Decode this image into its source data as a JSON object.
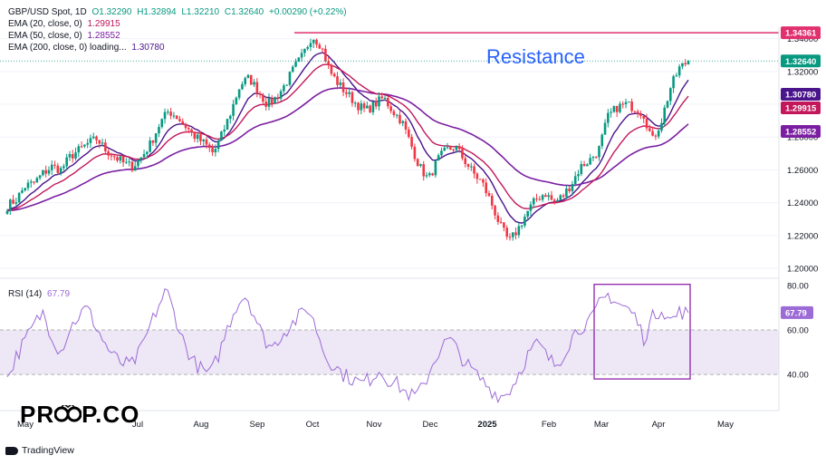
{
  "header": {
    "symbol_line": "GBP/USD Spot, 1D",
    "open": "O1.32290",
    "high": "H1.32894",
    "low": "L1.32210",
    "close": "C1.32640",
    "change": "+0.00290 (+0.22%)"
  },
  "indicators": [
    {
      "label": "EMA (20, close, 0)",
      "value": "1.29915",
      "color": "#c2185b"
    },
    {
      "label": "EMA (50, close, 0)",
      "value": "1.28552",
      "color": "#7b1fa2"
    },
    {
      "label": "EMA (200, close, 0) loading...",
      "value": "1.30780",
      "color": "#4a148c"
    }
  ],
  "rsi": {
    "label": "RSI (14)",
    "value": "67.79",
    "color": "#9c6bd6"
  },
  "branding": {
    "tradingview": "TradingView",
    "logo_left": "PR",
    "logo_right": "P.CO"
  },
  "colors": {
    "up": "#089981",
    "down": "#f23645",
    "resistance": "#e0306e",
    "rsi_band": "#ede7f6"
  },
  "chart_data": [
    {
      "type": "candlestick",
      "title": "GBP/USD Spot, 1D",
      "ylim": [
        1.195,
        1.347
      ],
      "y_ticks": [
        "1.34000",
        "1.32000",
        "1.30000",
        "1.28000",
        "1.26000",
        "1.24000",
        "1.22000",
        "1.20000"
      ],
      "x_ticks": [
        "May",
        "Jul",
        "Aug",
        "Sep",
        "Oct",
        "Nov",
        "Dec",
        "2025",
        "Feb",
        "Mar",
        "Apr",
        "May"
      ],
      "resistance": {
        "value": 1.34361,
        "label": "Resistance",
        "price_label": "1.34361"
      },
      "last_price": {
        "value": 1.3264,
        "label": "1.32640"
      },
      "price_tags": [
        {
          "label": "1.30780",
          "value": 1.3078,
          "color": "#4a148c"
        },
        {
          "label": "1.29915",
          "value": 1.29915,
          "color": "#c2185b"
        },
        {
          "label": "1.28552",
          "value": 1.28552,
          "color": "#7b1fa2"
        }
      ],
      "close_path": [
        1.238,
        1.242,
        1.25,
        1.252,
        1.258,
        1.262,
        1.26,
        1.268,
        1.272,
        1.276,
        1.279,
        1.272,
        1.268,
        1.264,
        1.262,
        1.268,
        1.276,
        1.288,
        1.296,
        1.292,
        1.286,
        1.28,
        1.276,
        1.27,
        1.282,
        1.296,
        1.312,
        1.316,
        1.308,
        1.3,
        1.304,
        1.312,
        1.322,
        1.33,
        1.342,
        1.336,
        1.32,
        1.312,
        1.306,
        1.3,
        1.296,
        1.3,
        1.304,
        1.296,
        1.29,
        1.276,
        1.262,
        1.254,
        1.266,
        1.272,
        1.274,
        1.266,
        1.258,
        1.252,
        1.24,
        1.226,
        1.216,
        1.224,
        1.234,
        1.242,
        1.246,
        1.24,
        1.244,
        1.252,
        1.262,
        1.266,
        1.272,
        1.292,
        1.298,
        1.3,
        1.298,
        1.294,
        1.278,
        1.29,
        1.31,
        1.322,
        1.3264
      ]
    },
    {
      "type": "line",
      "title": "RSI (14)",
      "ylim": [
        25,
        82
      ],
      "y_ticks": [
        "80.00",
        "60.00",
        "40.00"
      ],
      "band": [
        40,
        60
      ],
      "last_value": 67.79,
      "values": [
        38,
        48,
        55,
        62,
        68,
        58,
        50,
        60,
        66,
        70,
        62,
        54,
        48,
        45,
        44,
        50,
        60,
        70,
        78,
        66,
        54,
        46,
        42,
        40,
        50,
        62,
        72,
        76,
        66,
        56,
        52,
        58,
        62,
        66,
        70,
        60,
        48,
        44,
        40,
        38,
        36,
        38,
        42,
        38,
        36,
        32,
        30,
        34,
        44,
        52,
        56,
        50,
        44,
        40,
        36,
        32,
        30,
        34,
        42,
        50,
        54,
        48,
        44,
        50,
        58,
        62,
        64,
        72,
        76,
        72,
        70,
        66,
        56,
        66,
        70,
        64,
        68,
        67.79
      ]
    }
  ]
}
